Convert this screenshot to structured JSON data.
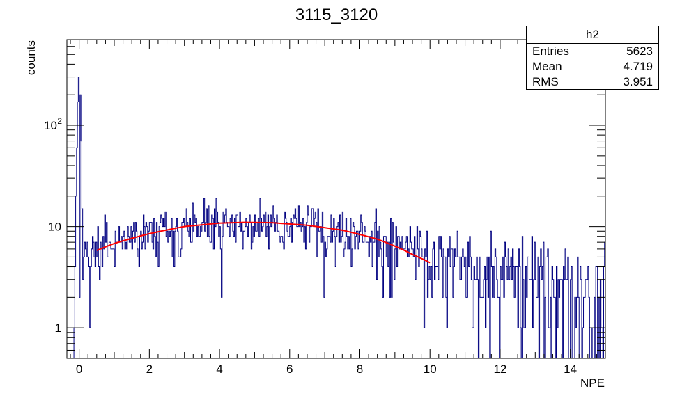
{
  "chart_data": {
    "type": "histogram",
    "title": "3115_3120",
    "xlabel": "NPE",
    "ylabel": "counts",
    "xlim": [
      -0.35,
      15
    ],
    "ylim": [
      0.5,
      700
    ],
    "yscale": "log",
    "x_ticks": [
      0,
      2,
      4,
      6,
      8,
      10,
      12,
      14
    ],
    "y_ticks": [
      {
        "value": 1,
        "label": "1"
      },
      {
        "value": 10,
        "label": "10"
      },
      {
        "value": 100,
        "label": "10",
        "sup": "2"
      }
    ],
    "bin_width": 0.025,
    "bin_start": -0.35,
    "histogram_color": "#000080",
    "peak_bins": [
      {
        "x": -0.15,
        "y": 1
      },
      {
        "x": -0.125,
        "y": 4
      },
      {
        "x": -0.1,
        "y": 20
      },
      {
        "x": -0.075,
        "y": 60
      },
      {
        "x": -0.05,
        "y": 170
      },
      {
        "x": -0.025,
        "y": 300
      },
      {
        "x": 0.0,
        "y": 350
      },
      {
        "x": 0.025,
        "y": 200
      },
      {
        "x": 0.05,
        "y": 70
      },
      {
        "x": 0.075,
        "y": 15
      },
      {
        "x": 0.1,
        "y": 3
      },
      {
        "x": 0.125,
        "y": 5
      },
      {
        "x": 0.15,
        "y": 7
      },
      {
        "x": 0.175,
        "y": 6
      },
      {
        "x": 0.2,
        "y": 5
      },
      {
        "x": 0.225,
        "y": 7
      },
      {
        "x": 0.25,
        "y": 5
      },
      {
        "x": 0.275,
        "y": 4
      },
      {
        "x": 0.3,
        "y": 1
      },
      {
        "x": 0.325,
        "y": 4
      },
      {
        "x": 0.35,
        "y": 6
      }
    ],
    "fit": {
      "color": "#ff0000",
      "x_range": [
        0.5,
        10
      ],
      "points": [
        {
          "x": 0.5,
          "y": 5.8
        },
        {
          "x": 1,
          "y": 6.8
        },
        {
          "x": 2,
          "y": 8.5
        },
        {
          "x": 3,
          "y": 10.0
        },
        {
          "x": 4,
          "y": 10.8
        },
        {
          "x": 4.7,
          "y": 11.0
        },
        {
          "x": 5.5,
          "y": 10.9
        },
        {
          "x": 6.5,
          "y": 10.3
        },
        {
          "x": 7.5,
          "y": 9.2
        },
        {
          "x": 8.5,
          "y": 7.5
        },
        {
          "x": 9.5,
          "y": 5.3
        },
        {
          "x": 10,
          "y": 4.4
        }
      ]
    }
  },
  "stats": {
    "name": "h2",
    "rows": [
      {
        "label": "Entries",
        "value": "5623"
      },
      {
        "label": "Mean",
        "value": "4.719"
      },
      {
        "label": "RMS",
        "value": "3.951"
      }
    ]
  }
}
